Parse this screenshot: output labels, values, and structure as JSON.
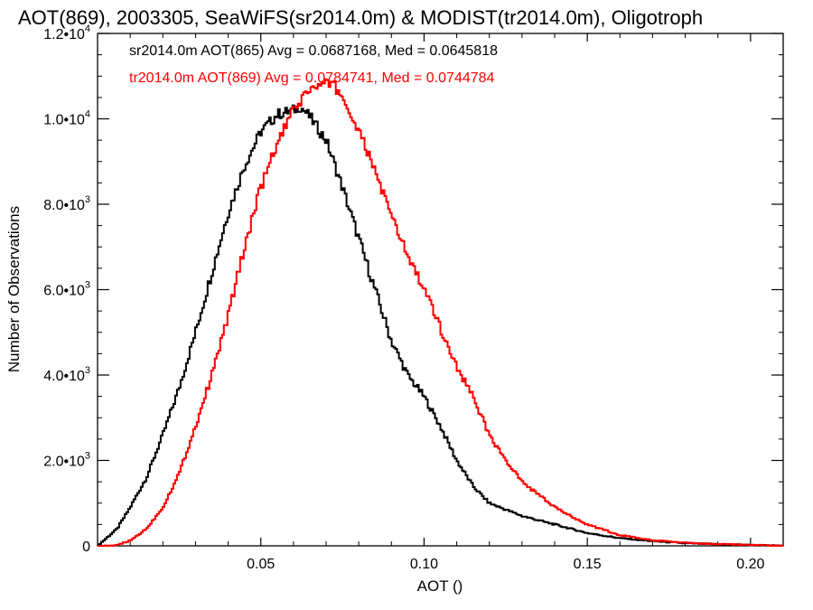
{
  "chart_data": {
    "type": "line",
    "title": "AOT(869), 2003305, SeaWiFS(sr2014.0m) & MODIST(tr2014.0m), Oligotroph",
    "xlabel": "AOT ()",
    "ylabel": "Number of Observations",
    "xlim": [
      0.0,
      0.21
    ],
    "ylim": [
      0,
      12000
    ],
    "x_ticks": [
      {
        "value": 0.05,
        "label": "0.05"
      },
      {
        "value": 0.1,
        "label": "0.10"
      },
      {
        "value": 0.15,
        "label": "0.15"
      },
      {
        "value": 0.2,
        "label": "0.20"
      }
    ],
    "y_ticks": [
      {
        "value": 0,
        "mant": "0",
        "exp": ""
      },
      {
        "value": 2000,
        "mant": "2.0•10",
        "exp": "3"
      },
      {
        "value": 4000,
        "mant": "4.0•10",
        "exp": "3"
      },
      {
        "value": 6000,
        "mant": "6.0•10",
        "exp": "3"
      },
      {
        "value": 8000,
        "mant": "8.0•10",
        "exp": "3"
      },
      {
        "value": 10000,
        "mant": "1.0•10",
        "exp": "4"
      },
      {
        "value": 12000,
        "mant": "1.2•10",
        "exp": "4"
      }
    ],
    "grid": false,
    "legend_position": "top-left",
    "series": [
      {
        "label": "sr2014.0m AOT(865) Avg = 0.0687168, Med = 0.0645818",
        "color": "#000000",
        "x": [
          0.0,
          0.003,
          0.006,
          0.01,
          0.015,
          0.02,
          0.025,
          0.03,
          0.035,
          0.04,
          0.045,
          0.05,
          0.055,
          0.06,
          0.062,
          0.065,
          0.07,
          0.075,
          0.08,
          0.085,
          0.09,
          0.095,
          0.1,
          0.105,
          0.11,
          0.115,
          0.12,
          0.13,
          0.14,
          0.15,
          0.16,
          0.17,
          0.18,
          0.19,
          0.2,
          0.21
        ],
        "y": [
          0,
          200,
          400,
          900,
          1600,
          2600,
          3700,
          5000,
          6400,
          7800,
          8900,
          9700,
          10100,
          10200,
          10300,
          10050,
          9500,
          8400,
          7200,
          6000,
          4800,
          4000,
          3500,
          2800,
          2000,
          1400,
          1000,
          700,
          500,
          300,
          180,
          110,
          60,
          40,
          20,
          0
        ]
      },
      {
        "label": "tr2014.0m AOT(869) Avg = 0.0784741, Med = 0.0744784",
        "color": "#ff0000",
        "x": [
          0.0,
          0.005,
          0.01,
          0.015,
          0.02,
          0.025,
          0.03,
          0.035,
          0.04,
          0.045,
          0.05,
          0.055,
          0.06,
          0.065,
          0.07,
          0.072,
          0.075,
          0.08,
          0.085,
          0.09,
          0.095,
          0.1,
          0.105,
          0.11,
          0.115,
          0.12,
          0.125,
          0.13,
          0.14,
          0.15,
          0.16,
          0.17,
          0.18,
          0.19,
          0.2,
          0.21
        ],
        "y": [
          0,
          0,
          120,
          400,
          900,
          1700,
          2800,
          4000,
          5400,
          7000,
          8400,
          9400,
          10200,
          10700,
          10800,
          10850,
          10500,
          9700,
          8800,
          7700,
          6800,
          6000,
          5100,
          4200,
          3500,
          2600,
          2000,
          1500,
          900,
          500,
          250,
          130,
          70,
          40,
          20,
          0
        ]
      }
    ]
  }
}
